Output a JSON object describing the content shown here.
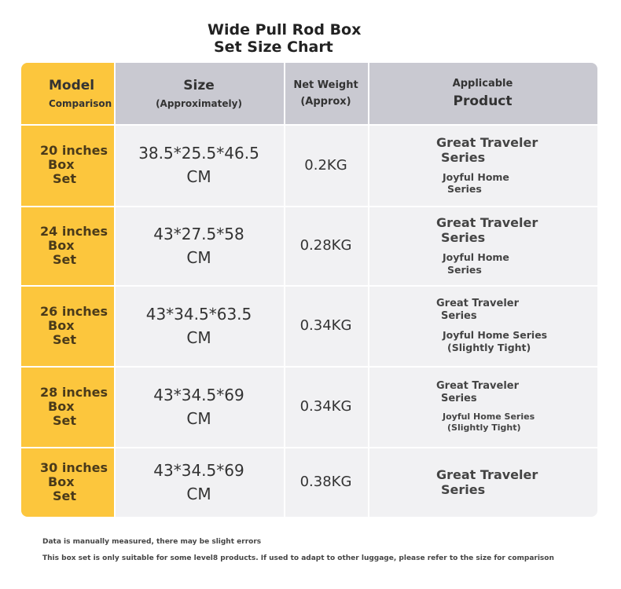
{
  "header": {
    "title_lines": [
      "Wide Pull Rod Box",
      "Set Size Chart"
    ]
  },
  "table": {
    "columns": [
      [
        "Model",
        "Comparison"
      ],
      [
        "Size",
        "(Approximately)"
      ],
      [
        "Net Weight",
        "(Approx)"
      ],
      [
        "Applicable",
        "Product"
      ]
    ],
    "rows": [
      {
        "model": [
          "20 inches",
          "Box",
          "Set"
        ],
        "size": [
          "38.5*25.5*46.5",
          "CM"
        ],
        "weight": "0.2KG",
        "products": [
          [
            "Great Traveler",
            "Series"
          ],
          [
            "Joyful Home",
            "Series"
          ]
        ]
      },
      {
        "model": [
          "24 inches",
          "Box",
          "Set"
        ],
        "size": [
          "43*27.5*58",
          "CM"
        ],
        "weight": "0.28KG",
        "products": [
          [
            "Great Traveler",
            "Series"
          ],
          [
            "Joyful Home",
            "Series"
          ]
        ]
      },
      {
        "model": [
          "26 inches",
          "Box",
          "Set"
        ],
        "size": [
          "43*34.5*63.5",
          "CM"
        ],
        "weight": "0.34KG",
        "products": [
          [
            "Great Traveler",
            "Series"
          ],
          [
            "Joyful Home Series",
            "(Slightly Tight)"
          ]
        ]
      },
      {
        "model": [
          "28 inches",
          "Box",
          "Set"
        ],
        "size": [
          "43*34.5*69",
          "CM"
        ],
        "weight": "0.34KG",
        "products": [
          [
            "Great Traveler",
            "Series"
          ],
          [
            "Joyful Home Series",
            "(Slightly Tight)"
          ]
        ]
      },
      {
        "model": [
          "30 inches",
          "Box",
          "Set"
        ],
        "size": [
          "43*34.5*69",
          "CM"
        ],
        "weight": "0.38KG",
        "products": [
          [
            "Great Traveler",
            "Series"
          ]
        ]
      }
    ]
  },
  "notes": [
    "Data is manually measured, there may be slight errors",
    "This box set is only suitable for some level8 products. If used to adapt to other luggage, please refer to the size for comparison"
  ]
}
